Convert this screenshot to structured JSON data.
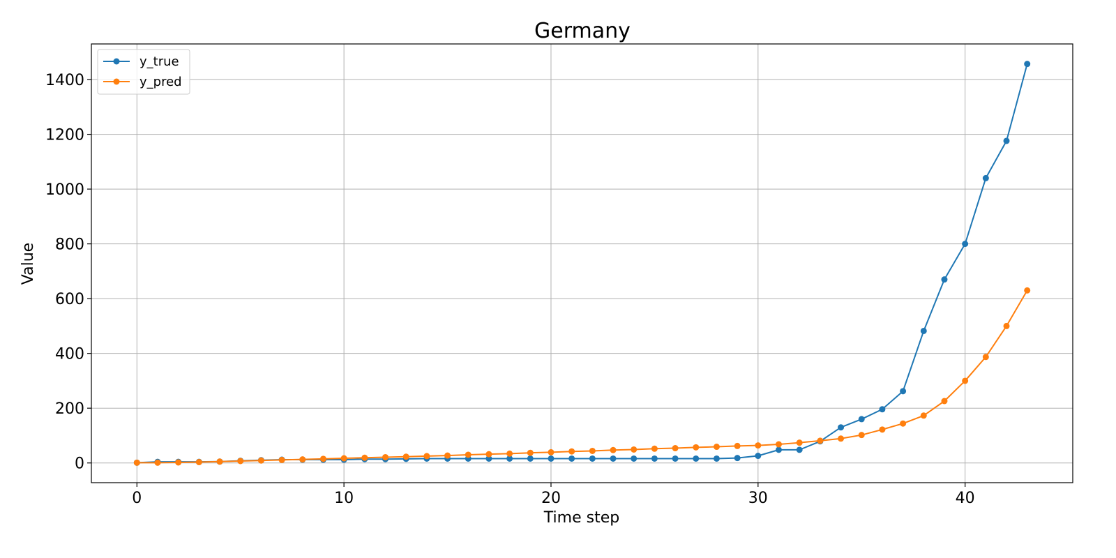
{
  "chart_data": {
    "type": "line",
    "title": "Germany",
    "xlabel": "Time step",
    "ylabel": "Value",
    "xlim": [
      -2.2,
      45.2
    ],
    "ylim": [
      -72,
      1530
    ],
    "xticks": [
      0,
      10,
      20,
      30,
      40
    ],
    "yticks": [
      0,
      200,
      400,
      600,
      800,
      1000,
      1200,
      1400
    ],
    "grid": true,
    "legend_position": "top-left",
    "x": [
      0,
      1,
      2,
      3,
      4,
      5,
      6,
      7,
      8,
      9,
      10,
      11,
      12,
      13,
      14,
      15,
      16,
      17,
      18,
      19,
      20,
      21,
      22,
      23,
      24,
      25,
      26,
      27,
      28,
      29,
      30,
      31,
      32,
      33,
      34,
      35,
      36,
      37,
      38,
      39,
      40,
      41,
      42,
      43
    ],
    "series": [
      {
        "name": "y_true",
        "color": "#1f77b4",
        "marker": "circle",
        "values": [
          1,
          4,
          4,
          4,
          5,
          8,
          10,
          12,
          12,
          12,
          12,
          14,
          14,
          15,
          16,
          16,
          16,
          16,
          16,
          16,
          16,
          16,
          16,
          16,
          16,
          16,
          16,
          16,
          16,
          18,
          26,
          48,
          48,
          79,
          130,
          160,
          196,
          262,
          482,
          670,
          800,
          1040,
          1176,
          1457
        ]
      },
      {
        "name": "y_pred",
        "color": "#ff7f0e",
        "marker": "circle",
        "values": [
          1,
          1,
          2,
          3,
          5,
          7,
          9,
          11,
          13,
          15,
          17,
          19,
          21,
          23,
          25,
          27,
          30,
          32,
          34,
          37,
          39,
          42,
          44,
          47,
          49,
          52,
          54,
          57,
          59,
          62,
          64,
          68,
          74,
          81,
          89,
          102,
          122,
          144,
          173,
          226,
          300,
          387,
          500,
          630
        ]
      }
    ]
  }
}
